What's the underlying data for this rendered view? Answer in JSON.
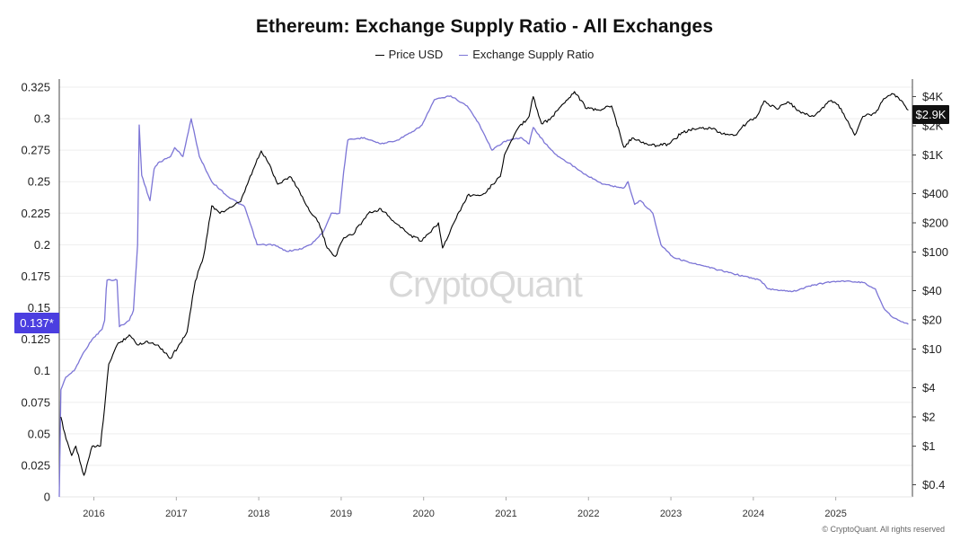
{
  "title": "Ethereum: Exchange Supply Ratio - All Exchanges",
  "legend": {
    "price_label": "Price USD",
    "ratio_label": "Exchange Supply Ratio"
  },
  "watermark": "CryptoQuant",
  "copyright": "© CryptoQuant. All rights reserved",
  "colors": {
    "price": "#000000",
    "ratio": "#7c75d6",
    "ratio_badge": "#4b3ee0",
    "price_badge": "#111111",
    "grid": "#eeeeee"
  },
  "badges": {
    "ratio_current": "0.137*",
    "price_current": "$2.9K"
  },
  "chart_data": {
    "type": "line",
    "title": "Ethereum: Exchange Supply Ratio - All Exchanges",
    "grid": true,
    "legend_position": "top",
    "x_ticks": [
      "2016",
      "2017",
      "2018",
      "2019",
      "2020",
      "2021",
      "2022",
      "2023",
      "2024",
      "2025"
    ],
    "xlim": [
      2015.6,
      2025.95
    ],
    "left_axis": {
      "label": "",
      "ylim": [
        0,
        0.325
      ],
      "ticks": [
        0,
        0.025,
        0.05,
        0.075,
        0.1,
        0.125,
        0.15,
        0.175,
        0.2,
        0.225,
        0.25,
        0.275,
        0.3,
        0.325
      ],
      "tick_labels": [
        "0",
        "0.025",
        "0.05",
        "0.075",
        "0.1",
        "0.125",
        "0.15",
        "0.175",
        "0.2",
        "0.225",
        "0.25",
        "0.275",
        "0.3",
        "0.325"
      ]
    },
    "right_axis": {
      "label": "",
      "scale": "log",
      "ylim": [
        0.3,
        5000
      ],
      "ticks": [
        0.4,
        1,
        2,
        4,
        10,
        20,
        40,
        100,
        200,
        400,
        1000,
        2000,
        4000
      ],
      "tick_labels": [
        "$0.4",
        "$1",
        "$2",
        "$4",
        "$10",
        "$20",
        "$40",
        "$100",
        "$200",
        "$400",
        "$1K",
        "$2K",
        "$4K"
      ]
    },
    "series": [
      {
        "name": "Exchange Supply Ratio",
        "axis": "left",
        "points": [
          [
            2015.6,
            0.0
          ],
          [
            2015.62,
            0.085
          ],
          [
            2015.68,
            0.095
          ],
          [
            2015.78,
            0.1
          ],
          [
            2015.9,
            0.115
          ],
          [
            2016.0,
            0.125
          ],
          [
            2016.12,
            0.133
          ],
          [
            2016.15,
            0.14
          ],
          [
            2016.17,
            0.165
          ],
          [
            2016.18,
            0.172
          ],
          [
            2016.3,
            0.172
          ],
          [
            2016.33,
            0.135
          ],
          [
            2016.45,
            0.14
          ],
          [
            2016.5,
            0.148
          ],
          [
            2016.55,
            0.2
          ],
          [
            2016.57,
            0.295
          ],
          [
            2016.6,
            0.255
          ],
          [
            2016.7,
            0.235
          ],
          [
            2016.75,
            0.26
          ],
          [
            2016.8,
            0.265
          ],
          [
            2016.95,
            0.27
          ],
          [
            2017.0,
            0.277
          ],
          [
            2017.1,
            0.27
          ],
          [
            2017.2,
            0.3
          ],
          [
            2017.3,
            0.27
          ],
          [
            2017.45,
            0.25
          ],
          [
            2017.65,
            0.238
          ],
          [
            2017.85,
            0.23
          ],
          [
            2018.0,
            0.2
          ],
          [
            2018.2,
            0.2
          ],
          [
            2018.35,
            0.195
          ],
          [
            2018.5,
            0.196
          ],
          [
            2018.65,
            0.2
          ],
          [
            2018.8,
            0.21
          ],
          [
            2018.9,
            0.225
          ],
          [
            2019.0,
            0.225
          ],
          [
            2019.05,
            0.258
          ],
          [
            2019.1,
            0.283
          ],
          [
            2019.3,
            0.285
          ],
          [
            2019.5,
            0.28
          ],
          [
            2019.7,
            0.283
          ],
          [
            2019.9,
            0.29
          ],
          [
            2020.0,
            0.295
          ],
          [
            2020.15,
            0.315
          ],
          [
            2020.35,
            0.318
          ],
          [
            2020.55,
            0.31
          ],
          [
            2020.7,
            0.295
          ],
          [
            2020.85,
            0.275
          ],
          [
            2021.0,
            0.282
          ],
          [
            2021.2,
            0.285
          ],
          [
            2021.3,
            0.28
          ],
          [
            2021.35,
            0.293
          ],
          [
            2021.5,
            0.28
          ],
          [
            2021.65,
            0.27
          ],
          [
            2021.85,
            0.262
          ],
          [
            2022.0,
            0.255
          ],
          [
            2022.2,
            0.248
          ],
          [
            2022.45,
            0.245
          ],
          [
            2022.5,
            0.25
          ],
          [
            2022.58,
            0.232
          ],
          [
            2022.65,
            0.235
          ],
          [
            2022.8,
            0.225
          ],
          [
            2022.9,
            0.2
          ],
          [
            2023.05,
            0.19
          ],
          [
            2023.3,
            0.185
          ],
          [
            2023.6,
            0.18
          ],
          [
            2023.9,
            0.175
          ],
          [
            2024.1,
            0.172
          ],
          [
            2024.2,
            0.165
          ],
          [
            2024.5,
            0.163
          ],
          [
            2024.75,
            0.168
          ],
          [
            2025.0,
            0.171
          ],
          [
            2025.2,
            0.171
          ],
          [
            2025.35,
            0.17
          ],
          [
            2025.5,
            0.165
          ],
          [
            2025.6,
            0.15
          ],
          [
            2025.72,
            0.142
          ],
          [
            2025.85,
            0.138
          ],
          [
            2025.9,
            0.137
          ]
        ]
      },
      {
        "name": "Price USD",
        "axis": "right",
        "points": [
          [
            2015.62,
            2.0
          ],
          [
            2015.65,
            1.5
          ],
          [
            2015.75,
            0.8
          ],
          [
            2015.8,
            1.0
          ],
          [
            2015.9,
            0.5
          ],
          [
            2016.0,
            1.0
          ],
          [
            2016.1,
            1.0
          ],
          [
            2016.15,
            2.5
          ],
          [
            2016.2,
            7
          ],
          [
            2016.3,
            11
          ],
          [
            2016.45,
            14
          ],
          [
            2016.55,
            11
          ],
          [
            2016.65,
            12
          ],
          [
            2016.8,
            11
          ],
          [
            2016.95,
            8
          ],
          [
            2017.05,
            11
          ],
          [
            2017.15,
            15
          ],
          [
            2017.25,
            50
          ],
          [
            2017.35,
            90
          ],
          [
            2017.45,
            300
          ],
          [
            2017.55,
            250
          ],
          [
            2017.65,
            280
          ],
          [
            2017.8,
            330
          ],
          [
            2017.95,
            700
          ],
          [
            2018.05,
            1100
          ],
          [
            2018.15,
            800
          ],
          [
            2018.25,
            500
          ],
          [
            2018.4,
            600
          ],
          [
            2018.5,
            450
          ],
          [
            2018.6,
            300
          ],
          [
            2018.75,
            200
          ],
          [
            2018.85,
            110
          ],
          [
            2018.95,
            90
          ],
          [
            2019.05,
            140
          ],
          [
            2019.15,
            150
          ],
          [
            2019.35,
            250
          ],
          [
            2019.5,
            280
          ],
          [
            2019.65,
            210
          ],
          [
            2019.85,
            150
          ],
          [
            2020.0,
            130
          ],
          [
            2020.2,
            200
          ],
          [
            2020.25,
            110
          ],
          [
            2020.4,
            210
          ],
          [
            2020.55,
            380
          ],
          [
            2020.75,
            400
          ],
          [
            2020.95,
            600
          ],
          [
            2021.0,
            1000
          ],
          [
            2021.15,
            1800
          ],
          [
            2021.3,
            2500
          ],
          [
            2021.35,
            4000
          ],
          [
            2021.45,
            2100
          ],
          [
            2021.55,
            2300
          ],
          [
            2021.7,
            3300
          ],
          [
            2021.85,
            4500
          ],
          [
            2022.0,
            3000
          ],
          [
            2022.15,
            2900
          ],
          [
            2022.3,
            3200
          ],
          [
            2022.45,
            1200
          ],
          [
            2022.55,
            1500
          ],
          [
            2022.7,
            1300
          ],
          [
            2022.85,
            1250
          ],
          [
            2023.0,
            1300
          ],
          [
            2023.15,
            1700
          ],
          [
            2023.3,
            1850
          ],
          [
            2023.5,
            1900
          ],
          [
            2023.65,
            1650
          ],
          [
            2023.8,
            1600
          ],
          [
            2023.95,
            2200
          ],
          [
            2024.05,
            2400
          ],
          [
            2024.15,
            3600
          ],
          [
            2024.3,
            3000
          ],
          [
            2024.45,
            3500
          ],
          [
            2024.6,
            2700
          ],
          [
            2024.75,
            2500
          ],
          [
            2024.95,
            3600
          ],
          [
            2025.05,
            3300
          ],
          [
            2025.15,
            2300
          ],
          [
            2025.25,
            1600
          ],
          [
            2025.35,
            2500
          ],
          [
            2025.5,
            2700
          ],
          [
            2025.6,
            3800
          ],
          [
            2025.7,
            4300
          ],
          [
            2025.78,
            3900
          ],
          [
            2025.85,
            3300
          ],
          [
            2025.9,
            2900
          ]
        ]
      }
    ]
  }
}
